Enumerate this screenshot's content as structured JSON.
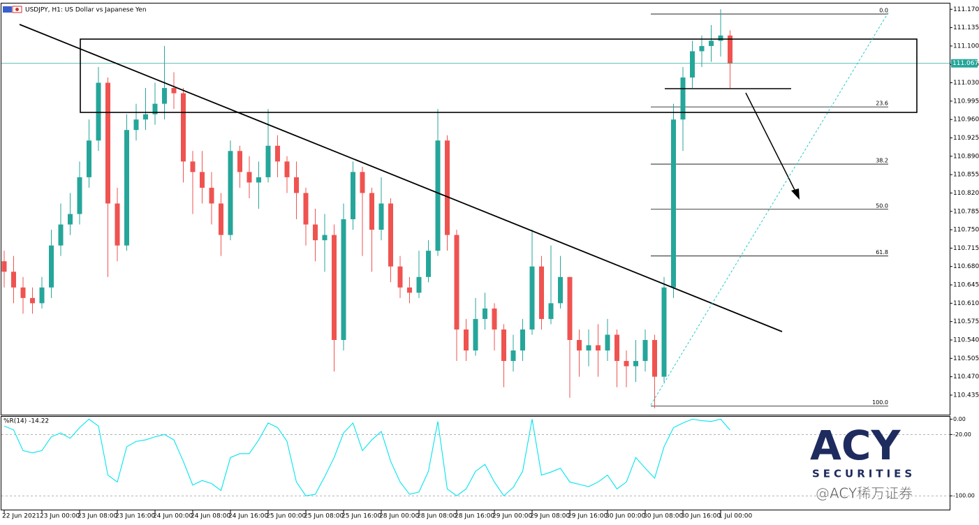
{
  "chart_data": [
    {
      "type": "candlestick",
      "title": "USDJPY, H1:  US Dollar vs Japanese Yen",
      "categories": [
        "22 Jun 2021",
        null,
        null,
        null,
        "23 Jun 00:00",
        null,
        null,
        null,
        "23 Jun 08:00",
        null,
        null,
        null,
        "23 Jun 16:00",
        null,
        null,
        null,
        "24 Jun 00:00",
        null,
        null,
        null,
        "24 Jun 08:00",
        null,
        null,
        null,
        "24 Jun 16:00",
        null,
        null,
        null,
        "25 Jun 00:00",
        null,
        null,
        null,
        "25 Jun 08:00",
        null,
        null,
        null,
        "25 Jun 16:00",
        null,
        null,
        null,
        "28 Jun 00:00",
        null,
        null,
        null,
        "28 Jun 08:00",
        null,
        null,
        null,
        "28 Jun 16:00",
        null,
        null,
        null,
        "29 Jun 00:00",
        null,
        null,
        null,
        "29 Jun 08:00",
        null,
        null,
        null,
        "29 Jun 16:00",
        null,
        null,
        null,
        "30 Jun 00:00",
        null,
        null,
        null,
        "30 Jun 08:00",
        null,
        null,
        null,
        "30 Jun 16:00",
        null,
        null,
        null,
        "1 Jul 00:00",
        null
      ],
      "open": [
        110.69,
        110.67,
        110.64,
        110.62,
        110.61,
        110.64,
        110.72,
        110.76,
        110.78,
        110.85,
        110.92,
        111.03,
        110.8,
        110.72,
        110.94,
        110.96,
        110.97,
        110.99,
        111.02,
        111.01,
        110.88,
        110.86,
        110.83,
        110.8,
        110.74,
        110.9,
        110.86,
        110.84,
        110.85,
        110.91,
        110.88,
        110.85,
        110.82,
        110.76,
        110.73,
        110.74,
        110.54,
        110.77,
        110.86,
        110.82,
        110.75,
        110.8,
        110.68,
        110.64,
        110.63,
        110.66,
        110.71,
        110.92,
        110.74,
        110.56,
        110.52,
        110.58,
        110.6,
        110.56,
        110.5,
        110.52,
        110.56,
        110.68,
        110.58,
        110.61,
        110.66,
        110.54,
        110.52,
        110.53,
        110.52,
        110.55,
        110.5,
        110.49,
        110.5,
        110.54,
        110.47,
        110.64,
        110.96,
        111.04,
        111.09,
        111.1,
        111.11,
        111.12
      ],
      "high": [
        110.71,
        110.7,
        110.66,
        110.64,
        110.66,
        110.75,
        110.8,
        110.82,
        110.88,
        110.96,
        111.06,
        111.04,
        110.83,
        110.97,
        110.99,
        111.02,
        111.03,
        111.1,
        111.05,
        111.02,
        110.9,
        110.9,
        110.86,
        110.82,
        110.92,
        110.91,
        110.89,
        110.88,
        110.98,
        110.93,
        110.89,
        110.88,
        110.83,
        110.79,
        110.78,
        110.76,
        110.8,
        110.88,
        110.87,
        110.83,
        110.85,
        110.81,
        110.7,
        110.66,
        110.71,
        110.73,
        110.98,
        110.93,
        110.75,
        110.58,
        110.62,
        110.63,
        110.61,
        110.57,
        110.55,
        110.58,
        110.75,
        110.7,
        110.72,
        110.7,
        110.66,
        110.56,
        110.56,
        110.57,
        110.58,
        110.56,
        110.52,
        110.54,
        110.56,
        110.55,
        110.66,
        110.99,
        111.06,
        111.11,
        111.12,
        111.14,
        111.17,
        111.13
      ],
      "low": [
        110.64,
        110.61,
        110.59,
        110.59,
        110.6,
        110.62,
        110.7,
        110.74,
        110.76,
        110.83,
        110.9,
        110.66,
        110.69,
        110.71,
        110.92,
        110.94,
        110.95,
        110.96,
        110.98,
        110.84,
        110.78,
        110.8,
        110.76,
        110.7,
        110.73,
        110.83,
        110.81,
        110.79,
        110.84,
        110.85,
        110.82,
        110.77,
        110.72,
        110.69,
        110.67,
        110.48,
        110.52,
        110.75,
        110.7,
        110.67,
        110.73,
        110.65,
        110.62,
        110.61,
        110.62,
        110.65,
        110.7,
        110.71,
        110.5,
        110.5,
        110.51,
        110.56,
        110.52,
        110.45,
        110.48,
        110.5,
        110.55,
        110.56,
        110.57,
        110.6,
        110.43,
        110.47,
        110.49,
        110.47,
        110.5,
        110.45,
        110.45,
        110.46,
        110.48,
        110.41,
        110.46,
        110.62,
        110.9,
        111.02,
        111.06,
        111.07,
        111.08,
        111.02
      ],
      "close": [
        110.67,
        110.64,
        110.62,
        110.61,
        110.64,
        110.72,
        110.76,
        110.78,
        110.85,
        110.92,
        111.03,
        110.8,
        110.72,
        110.94,
        110.96,
        110.97,
        110.99,
        111.02,
        111.01,
        110.88,
        110.86,
        110.83,
        110.8,
        110.74,
        110.9,
        110.86,
        110.84,
        110.85,
        110.91,
        110.88,
        110.85,
        110.82,
        110.76,
        110.73,
        110.74,
        110.54,
        110.77,
        110.86,
        110.82,
        110.75,
        110.8,
        110.68,
        110.64,
        110.63,
        110.66,
        110.71,
        110.92,
        110.74,
        110.56,
        110.52,
        110.58,
        110.6,
        110.56,
        110.5,
        110.52,
        110.56,
        110.68,
        110.58,
        110.61,
        110.66,
        110.54,
        110.52,
        110.53,
        110.52,
        110.55,
        110.5,
        110.49,
        110.5,
        110.54,
        110.47,
        110.64,
        110.96,
        111.04,
        111.09,
        111.1,
        111.11,
        111.12,
        111.067
      ],
      "up_color": "#26a69a",
      "down_color": "#ef5350",
      "ylim": [
        110.399,
        111.181
      ],
      "yticks": [
        {
          "value": 111.17,
          "label": "111.170"
        },
        {
          "value": 111.135,
          "label": "111.135"
        },
        {
          "value": 111.1,
          "label": "111.100"
        },
        {
          "value": 111.065,
          "label": "111.065"
        },
        {
          "value": 111.03,
          "label": "111.030"
        },
        {
          "value": 110.995,
          "label": "110.995"
        },
        {
          "value": 110.96,
          "label": "110.960"
        },
        {
          "value": 110.925,
          "label": "110.925"
        },
        {
          "value": 110.89,
          "label": "110.890"
        },
        {
          "value": 110.855,
          "label": "110.855"
        },
        {
          "value": 110.82,
          "label": "110.820"
        },
        {
          "value": 110.785,
          "label": "110.785"
        },
        {
          "value": 110.75,
          "label": "110.750"
        },
        {
          "value": 110.715,
          "label": "110.715"
        },
        {
          "value": 110.68,
          "label": "110.680"
        },
        {
          "value": 110.645,
          "label": "110.645"
        },
        {
          "value": 110.61,
          "label": "110.610"
        },
        {
          "value": 110.575,
          "label": "110.575"
        },
        {
          "value": 110.54,
          "label": "110.540"
        },
        {
          "value": 110.505,
          "label": "110.505"
        },
        {
          "value": 110.47,
          "label": "110.470"
        },
        {
          "value": 110.435,
          "label": "110.435"
        }
      ],
      "current_price": 111.067,
      "current_price_color": "#26a69a",
      "fibonacci": [
        {
          "label": "0.0",
          "price": 111.161
        },
        {
          "label": "23.6",
          "price": 110.984
        },
        {
          "label": "38.2",
          "price": 110.875
        },
        {
          "label": "50.0",
          "price": 110.789
        },
        {
          "label": "61.8",
          "price": 110.7
        },
        {
          "label": "100.0",
          "price": 110.414
        }
      ]
    },
    {
      "type": "line",
      "title": "%R(14) -14.22",
      "color": "#00e5ee",
      "values": [
        -9,
        -14,
        -41,
        -44,
        -41,
        -23,
        -18,
        -25,
        -11,
        0,
        -9,
        -73,
        -82,
        -36,
        -29,
        -27,
        -23,
        -20,
        -27,
        -55,
        -86,
        -80,
        -84,
        -93,
        -50,
        -45,
        -45,
        -27,
        -5,
        -11,
        -29,
        -82,
        -100,
        -98,
        -75,
        -50,
        -18,
        -5,
        -41,
        -27,
        -16,
        -55,
        -82,
        -98,
        -95,
        -68,
        -3,
        -91,
        -100,
        -91,
        -68,
        -59,
        -82,
        -100,
        -89,
        -68,
        0,
        -73,
        -69,
        -64,
        -82,
        -85,
        -88,
        -82,
        -73,
        -91,
        -82,
        -50,
        -64,
        -77,
        -36,
        -11,
        -5,
        0,
        -2,
        -3,
        0,
        -14.22
      ],
      "ylim": [
        -118,
        4
      ],
      "yticks": [
        {
          "value": 0,
          "label": "0.00"
        },
        {
          "value": -20,
          "label": "-20.00"
        },
        {
          "value": -100,
          "label": "-100.00"
        }
      ]
    }
  ],
  "watermark": {
    "brand": "ACY",
    "subtitle": "SECURITIES",
    "handle": "@ACY稀万证券"
  }
}
